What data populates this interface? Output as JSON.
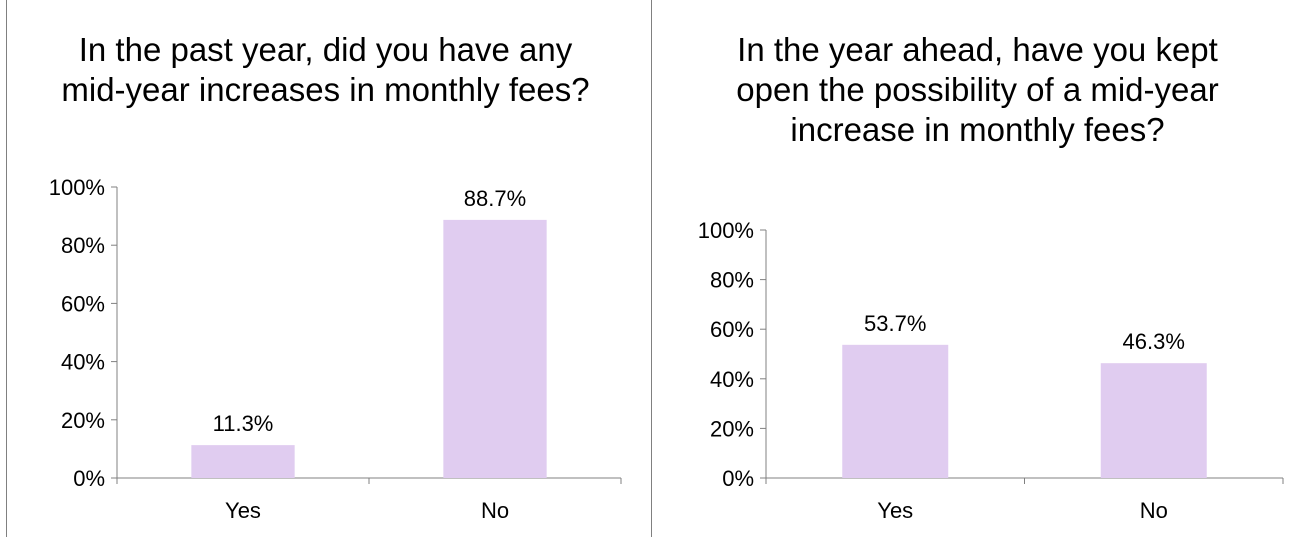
{
  "chart_data": [
    {
      "type": "bar",
      "title": "In the past year, did you have any mid-year increases in monthly fees?",
      "categories": [
        "Yes",
        "No"
      ],
      "values": [
        11.3,
        88.7
      ],
      "value_labels": [
        "11.3%",
        "88.7%"
      ],
      "ylim": [
        0,
        100
      ],
      "yticks": [
        "0%",
        "20%",
        "40%",
        "60%",
        "80%",
        "100%"
      ],
      "bar_color": "#E0CCF0",
      "grid": false,
      "legend": "none"
    },
    {
      "type": "bar",
      "title": "In the year ahead, have you kept open the possibility of a mid-year increase in monthly fees?",
      "categories": [
        "Yes",
        "No"
      ],
      "values": [
        53.7,
        46.3
      ],
      "value_labels": [
        "53.7%",
        "46.3%"
      ],
      "ylim": [
        0,
        100
      ],
      "yticks": [
        "0%",
        "20%",
        "40%",
        "60%",
        "80%",
        "100%"
      ],
      "bar_color": "#E0CCF0",
      "grid": false,
      "legend": "none"
    }
  ]
}
